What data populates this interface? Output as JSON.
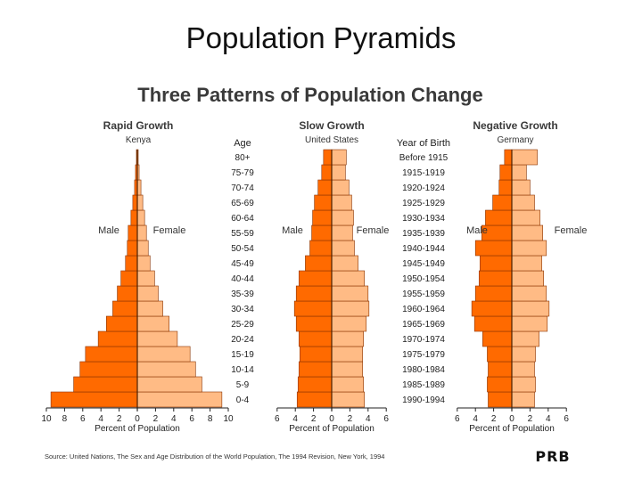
{
  "slide": {
    "title": "Population Pyramids"
  },
  "figure": {
    "heading": "Three Patterns of Population Change",
    "source": "Source: United Nations, The Sex and Age Distribution of the World Population, The 1994 Revision, New York, 1994",
    "logo_text": "PRB",
    "year_of_birth_header": "Year of Birth",
    "age_header": "Age"
  },
  "colors": {
    "male": "#ff6a00",
    "female": "#ffbb85",
    "stroke": "#8a3300",
    "heading": "#3a3a3a"
  },
  "chart_data": [
    {
      "type": "bar",
      "orientation": "horizontal-pyramid",
      "title": "Rapid Growth",
      "subtitle": "Kenya",
      "xlabel": "Percent of Population",
      "male_label": "Male",
      "female_label": "Female",
      "xlim": [
        -10,
        10
      ],
      "xticks": [
        "10",
        "8",
        "6",
        "4",
        "2",
        "0",
        "2",
        "4",
        "6",
        "8",
        "10"
      ],
      "categories": [
        "0-4",
        "5-9",
        "10-14",
        "15-19",
        "20-24",
        "25-29",
        "30-34",
        "35-39",
        "40-44",
        "45-49",
        "50-54",
        "55-59",
        "60-64",
        "65-69",
        "70-74",
        "75-79",
        "80+"
      ],
      "series": [
        {
          "name": "Male",
          "values": [
            9.5,
            7.0,
            6.3,
            5.7,
            4.3,
            3.4,
            2.7,
            2.2,
            1.8,
            1.3,
            1.1,
            1.0,
            0.7,
            0.5,
            0.3,
            0.2,
            0.1
          ]
        },
        {
          "name": "Female",
          "values": [
            9.3,
            7.1,
            6.4,
            5.8,
            4.4,
            3.5,
            2.8,
            2.3,
            1.9,
            1.4,
            1.2,
            1.0,
            0.8,
            0.6,
            0.4,
            0.2,
            0.1
          ]
        }
      ]
    },
    {
      "type": "bar",
      "orientation": "horizontal-pyramid",
      "title": "Slow Growth",
      "subtitle": "United States",
      "xlabel": "Percent of Population",
      "male_label": "Male",
      "female_label": "Female",
      "xlim": [
        -6,
        6
      ],
      "xticks": [
        "6",
        "4",
        "2",
        "0",
        "2",
        "4",
        "6"
      ],
      "categories": [
        "0-4",
        "5-9",
        "10-14",
        "15-19",
        "20-24",
        "25-29",
        "30-34",
        "35-39",
        "40-44",
        "45-49",
        "50-54",
        "55-59",
        "60-64",
        "65-69",
        "70-74",
        "75-79",
        "80+"
      ],
      "series": [
        {
          "name": "Male",
          "values": [
            3.8,
            3.7,
            3.6,
            3.5,
            3.6,
            3.9,
            4.1,
            3.9,
            3.6,
            2.9,
            2.4,
            2.2,
            2.1,
            1.9,
            1.5,
            1.1,
            0.9
          ]
        },
        {
          "name": "Female",
          "values": [
            3.6,
            3.5,
            3.4,
            3.4,
            3.5,
            3.8,
            4.1,
            4.0,
            3.6,
            2.9,
            2.5,
            2.3,
            2.4,
            2.2,
            1.9,
            1.5,
            1.6
          ]
        }
      ]
    },
    {
      "type": "bar",
      "orientation": "horizontal-pyramid",
      "title": "Negative Growth",
      "subtitle": "Germany",
      "xlabel": "Percent of Population",
      "male_label": "Male",
      "female_label": "Female",
      "xlim": [
        -6,
        6
      ],
      "xticks": [
        "6",
        "4",
        "2",
        "0",
        "2",
        "4",
        "6"
      ],
      "categories": [
        "0-4",
        "5-9",
        "10-14",
        "15-19",
        "20-24",
        "25-29",
        "30-34",
        "35-39",
        "40-44",
        "45-49",
        "50-54",
        "55-59",
        "60-64",
        "65-69",
        "70-74",
        "75-79",
        "80+"
      ],
      "series": [
        {
          "name": "Male",
          "values": [
            2.6,
            2.7,
            2.6,
            2.7,
            3.2,
            4.1,
            4.4,
            4.0,
            3.6,
            3.5,
            4.0,
            3.3,
            2.9,
            2.1,
            1.4,
            1.3,
            0.8
          ]
        },
        {
          "name": "Female",
          "values": [
            2.5,
            2.6,
            2.5,
            2.6,
            3.0,
            3.9,
            4.1,
            3.8,
            3.5,
            3.3,
            3.8,
            3.4,
            3.1,
            2.5,
            2.0,
            1.6,
            2.8
          ]
        }
      ]
    }
  ],
  "age_labels": [
    "80+",
    "75-79",
    "70-74",
    "65-69",
    "60-64",
    "55-59",
    "50-54",
    "45-49",
    "40-44",
    "35-39",
    "30-34",
    "25-29",
    "20-24",
    "15-19",
    "10-14",
    "5-9",
    "0-4"
  ],
  "birth_labels": [
    "Before 1915",
    "1915-1919",
    "1920-1924",
    "1925-1929",
    "1930-1934",
    "1935-1939",
    "1940-1944",
    "1945-1949",
    "1950-1954",
    "1955-1959",
    "1960-1964",
    "1965-1969",
    "1970-1974",
    "1975-1979",
    "1980-1984",
    "1985-1989",
    "1990-1994"
  ]
}
